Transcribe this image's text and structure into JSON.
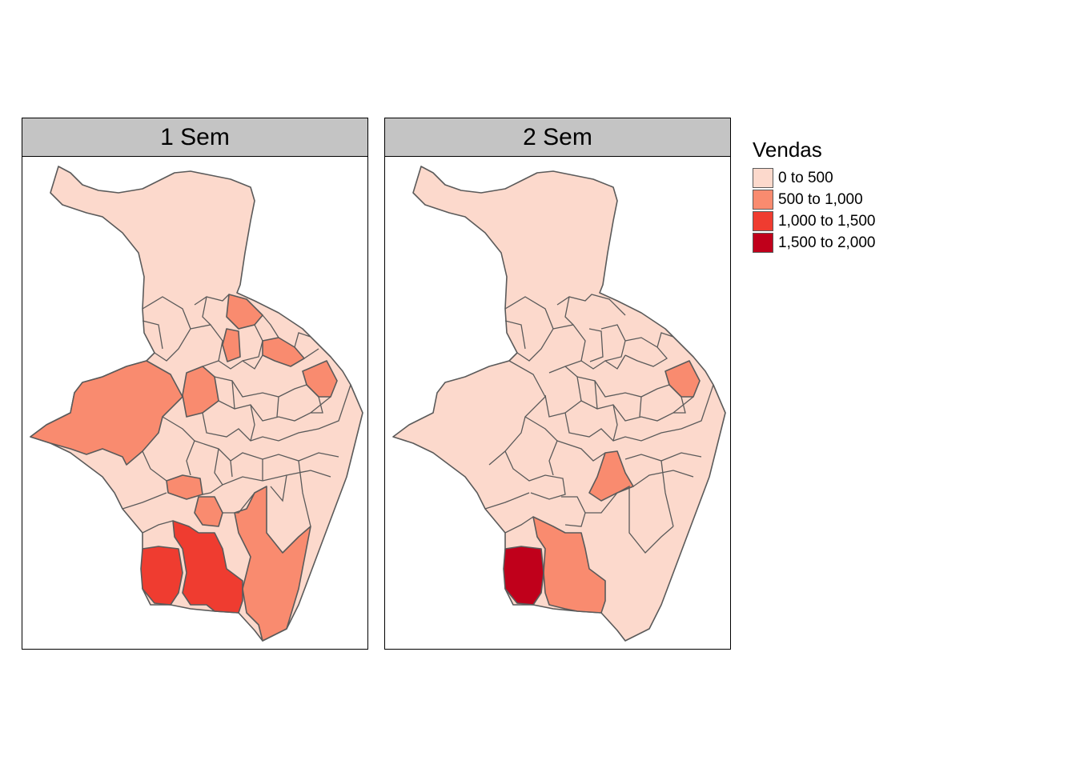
{
  "panels": [
    {
      "title": "1 Sem",
      "regions": [
        {
          "id": "north-big",
          "class": "0 to 500"
        },
        {
          "id": "west",
          "class": "500 to 1,000"
        },
        {
          "id": "center-west",
          "class": "500 to 1,000"
        },
        {
          "id": "north-east-1",
          "class": "500 to 1,000"
        },
        {
          "id": "north-east-2",
          "class": "500 to 1,000"
        },
        {
          "id": "north-east-3",
          "class": "500 to 1,000"
        },
        {
          "id": "east-1",
          "class": "500 to 1,000"
        },
        {
          "id": "south-center-small",
          "class": "500 to 1,000"
        },
        {
          "id": "south-center-2",
          "class": "500 to 1,000"
        },
        {
          "id": "south-east-strip",
          "class": "500 to 1,000"
        },
        {
          "id": "south-west",
          "class": "1,000 to 1,500"
        },
        {
          "id": "south-center",
          "class": "1,000 to 1,500"
        }
      ]
    },
    {
      "title": "2 Sem",
      "regions": [
        {
          "id": "north-big",
          "class": "0 to 500"
        },
        {
          "id": "east-1",
          "class": "500 to 1,000"
        },
        {
          "id": "center-east",
          "class": "500 to 1,000"
        },
        {
          "id": "south-center",
          "class": "500 to 1,000"
        },
        {
          "id": "south-west",
          "class": "1,500 to 2,000"
        }
      ]
    }
  ],
  "legend": {
    "title": "Vendas",
    "items": [
      {
        "label": "0 to 500",
        "color": "#fcd9cc"
      },
      {
        "label": "500 to 1,000",
        "color": "#f98b6f"
      },
      {
        "label": "1,000 to 1,500",
        "color": "#ef3c30"
      },
      {
        "label": "1,500 to 2,000",
        "color": "#c0001b"
      }
    ]
  },
  "colors": {
    "base": "#fcd9cc",
    "mid": "#f98b6f",
    "high": "#ef3c30",
    "top": "#c0001b",
    "border": "#5a5a5a",
    "strip": "#c4c4c4"
  }
}
